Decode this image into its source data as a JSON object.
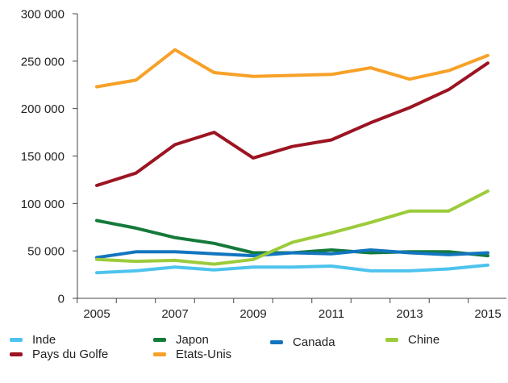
{
  "chart_data": {
    "type": "line",
    "title": "",
    "xlabel": "",
    "ylabel": "",
    "x": [
      2005,
      2006,
      2007,
      2008,
      2009,
      2010,
      2011,
      2012,
      2013,
      2014,
      2015
    ],
    "x_tick_labels": [
      "2005",
      "2007",
      "2009",
      "2011",
      "2013",
      "2015"
    ],
    "ylim": [
      0,
      300000
    ],
    "y_tick_labels": [
      "0",
      "50 000",
      "100 000",
      "150 000",
      "200 000",
      "250 000",
      "300 000"
    ],
    "grid": false,
    "legend_placement": "bottom",
    "series": [
      {
        "name": "Inde",
        "color": "#4dc3ee",
        "values": [
          27000,
          29000,
          33000,
          30000,
          33000,
          33000,
          34000,
          29000,
          29000,
          31000,
          35000
        ]
      },
      {
        "name": "Pays du Golfe",
        "color": "#9c1422",
        "values": [
          119000,
          132000,
          162000,
          175000,
          148000,
          160000,
          167000,
          185000,
          201000,
          220000,
          248000
        ]
      },
      {
        "name": "Japon",
        "color": "#147a3b",
        "values": [
          82000,
          74000,
          64000,
          58000,
          48000,
          48000,
          51000,
          48000,
          49000,
          49000,
          45000
        ]
      },
      {
        "name": "Etats-Unis",
        "color": "#f7a128",
        "values": [
          223000,
          230000,
          262000,
          238000,
          234000,
          235000,
          236000,
          243000,
          231000,
          240000,
          256000
        ]
      },
      {
        "name": "Canada",
        "color": "#1375bf",
        "values": [
          43000,
          49000,
          49000,
          47000,
          45000,
          48000,
          47000,
          51000,
          48000,
          46000,
          48000
        ]
      },
      {
        "name": "Chine",
        "color": "#9ccb3b",
        "values": [
          41000,
          39000,
          40000,
          36000,
          41000,
          59000,
          69000,
          80000,
          92000,
          92000,
          113000
        ]
      }
    ]
  }
}
